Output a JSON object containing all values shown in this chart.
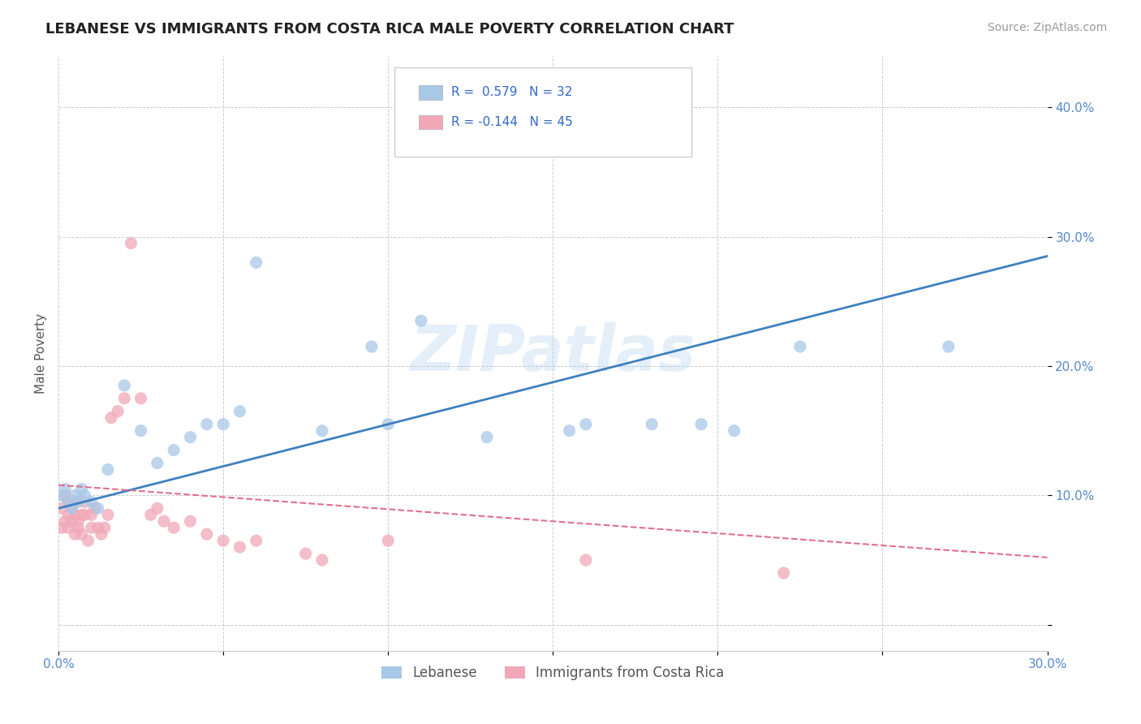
{
  "title": "LEBANESE VS IMMIGRANTS FROM COSTA RICA MALE POVERTY CORRELATION CHART",
  "source": "Source: ZipAtlas.com",
  "xlabel": "",
  "ylabel": "Male Poverty",
  "xlim": [
    0.0,
    0.3
  ],
  "ylim": [
    -0.02,
    0.44
  ],
  "ytick_positions": [
    0.0,
    0.1,
    0.2,
    0.3,
    0.4
  ],
  "ytick_labels": [
    "",
    "10.0%",
    "20.0%",
    "30.0%",
    "40.0%"
  ],
  "xtick_positions": [
    0.0,
    0.05,
    0.1,
    0.15,
    0.2,
    0.25,
    0.3
  ],
  "xtick_labels": [
    "0.0%",
    "",
    "",
    "",
    "",
    "",
    "30.0%"
  ],
  "watermark": "ZIPatlas",
  "legend_labels": [
    "Lebanese",
    "Immigrants from Costa Rica"
  ],
  "R_lebanese": 0.579,
  "N_lebanese": 32,
  "R_costarica": -0.144,
  "N_costarica": 45,
  "color_lebanese": "#a8c8e8",
  "color_costarica": "#f0a8b8",
  "line_color_lebanese": "#4080c0",
  "line_color_costarica": "#e07090",
  "leb_line_x0": 0.0,
  "leb_line_y0": 0.09,
  "leb_line_x1": 0.3,
  "leb_line_y1": 0.285,
  "cr_line_x0": 0.0,
  "cr_line_y0": 0.108,
  "cr_line_x1": 0.3,
  "cr_line_y1": 0.052,
  "lebanese_x": [
    0.001,
    0.002,
    0.003,
    0.004,
    0.005,
    0.006,
    0.007,
    0.008,
    0.01,
    0.012,
    0.015,
    0.02,
    0.025,
    0.03,
    0.035,
    0.04,
    0.045,
    0.05,
    0.055,
    0.06,
    0.08,
    0.095,
    0.1,
    0.11,
    0.13,
    0.155,
    0.16,
    0.18,
    0.195,
    0.205,
    0.225,
    0.27
  ],
  "lebanese_y": [
    0.1,
    0.105,
    0.095,
    0.09,
    0.1,
    0.095,
    0.105,
    0.1,
    0.095,
    0.09,
    0.12,
    0.185,
    0.15,
    0.125,
    0.135,
    0.145,
    0.155,
    0.155,
    0.165,
    0.28,
    0.15,
    0.215,
    0.155,
    0.235,
    0.145,
    0.15,
    0.155,
    0.155,
    0.155,
    0.15,
    0.215,
    0.215
  ],
  "costarica_x": [
    0.001,
    0.001,
    0.002,
    0.002,
    0.003,
    0.003,
    0.003,
    0.004,
    0.004,
    0.005,
    0.005,
    0.005,
    0.006,
    0.006,
    0.007,
    0.007,
    0.008,
    0.008,
    0.009,
    0.01,
    0.01,
    0.011,
    0.012,
    0.013,
    0.014,
    0.015,
    0.016,
    0.018,
    0.02,
    0.022,
    0.025,
    0.028,
    0.03,
    0.032,
    0.035,
    0.04,
    0.045,
    0.05,
    0.055,
    0.06,
    0.075,
    0.08,
    0.1,
    0.16,
    0.22
  ],
  "costarica_y": [
    0.075,
    0.09,
    0.08,
    0.1,
    0.095,
    0.085,
    0.075,
    0.09,
    0.08,
    0.085,
    0.07,
    0.095,
    0.08,
    0.075,
    0.085,
    0.07,
    0.085,
    0.095,
    0.065,
    0.085,
    0.075,
    0.09,
    0.075,
    0.07,
    0.075,
    0.085,
    0.16,
    0.165,
    0.175,
    0.295,
    0.175,
    0.085,
    0.09,
    0.08,
    0.075,
    0.08,
    0.07,
    0.065,
    0.06,
    0.065,
    0.055,
    0.05,
    0.065,
    0.05,
    0.04
  ]
}
